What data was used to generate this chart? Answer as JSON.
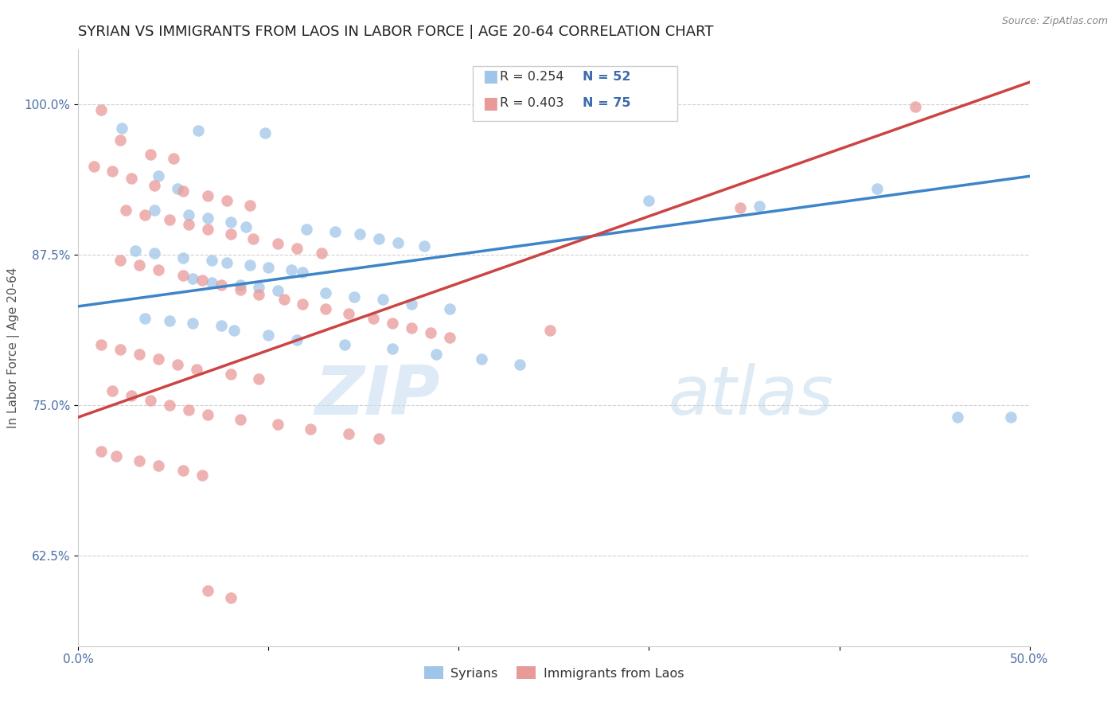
{
  "title": "SYRIAN VS IMMIGRANTS FROM LAOS IN LABOR FORCE | AGE 20-64 CORRELATION CHART",
  "source": "Source: ZipAtlas.com",
  "ylabel": "In Labor Force | Age 20-64",
  "xlim": [
    0.0,
    0.5
  ],
  "ylim": [
    0.55,
    1.045
  ],
  "xticks": [
    0.0,
    0.1,
    0.2,
    0.3,
    0.4,
    0.5
  ],
  "xticklabels": [
    "0.0%",
    "",
    "",
    "",
    "",
    "50.0%"
  ],
  "yticks": [
    0.625,
    0.75,
    0.875,
    1.0
  ],
  "yticklabels": [
    "62.5%",
    "75.0%",
    "87.5%",
    "100.0%"
  ],
  "blue_color": "#9fc5e8",
  "pink_color": "#ea9999",
  "blue_line_color": "#3d85c8",
  "pink_line_color": "#cc4444",
  "legend_label_blue": "Syrians",
  "legend_label_pink": "Immigrants from Laos",
  "watermark_ZIP": "ZIP",
  "watermark_atlas": "atlas",
  "title_fontsize": 13,
  "axis_label_fontsize": 11,
  "tick_fontsize": 11,
  "blue_scatter": [
    [
      0.023,
      0.98
    ],
    [
      0.063,
      0.978
    ],
    [
      0.098,
      0.976
    ],
    [
      0.042,
      0.94
    ],
    [
      0.052,
      0.93
    ],
    [
      0.04,
      0.912
    ],
    [
      0.058,
      0.908
    ],
    [
      0.068,
      0.905
    ],
    [
      0.08,
      0.902
    ],
    [
      0.088,
      0.898
    ],
    [
      0.12,
      0.896
    ],
    [
      0.135,
      0.894
    ],
    [
      0.148,
      0.892
    ],
    [
      0.158,
      0.888
    ],
    [
      0.168,
      0.885
    ],
    [
      0.182,
      0.882
    ],
    [
      0.03,
      0.878
    ],
    [
      0.04,
      0.876
    ],
    [
      0.055,
      0.872
    ],
    [
      0.07,
      0.87
    ],
    [
      0.078,
      0.868
    ],
    [
      0.09,
      0.866
    ],
    [
      0.1,
      0.864
    ],
    [
      0.112,
      0.862
    ],
    [
      0.118,
      0.86
    ],
    [
      0.06,
      0.855
    ],
    [
      0.07,
      0.852
    ],
    [
      0.085,
      0.85
    ],
    [
      0.095,
      0.848
    ],
    [
      0.105,
      0.845
    ],
    [
      0.13,
      0.843
    ],
    [
      0.145,
      0.84
    ],
    [
      0.16,
      0.838
    ],
    [
      0.175,
      0.834
    ],
    [
      0.195,
      0.83
    ],
    [
      0.035,
      0.822
    ],
    [
      0.048,
      0.82
    ],
    [
      0.06,
      0.818
    ],
    [
      0.075,
      0.816
    ],
    [
      0.082,
      0.812
    ],
    [
      0.1,
      0.808
    ],
    [
      0.115,
      0.804
    ],
    [
      0.14,
      0.8
    ],
    [
      0.165,
      0.797
    ],
    [
      0.188,
      0.792
    ],
    [
      0.212,
      0.788
    ],
    [
      0.232,
      0.784
    ],
    [
      0.3,
      0.92
    ],
    [
      0.358,
      0.915
    ],
    [
      0.42,
      0.93
    ],
    [
      0.462,
      0.74
    ],
    [
      0.49,
      0.74
    ]
  ],
  "pink_scatter": [
    [
      0.012,
      0.995
    ],
    [
      0.022,
      0.97
    ],
    [
      0.038,
      0.958
    ],
    [
      0.05,
      0.955
    ],
    [
      0.008,
      0.948
    ],
    [
      0.018,
      0.944
    ],
    [
      0.028,
      0.938
    ],
    [
      0.04,
      0.932
    ],
    [
      0.055,
      0.928
    ],
    [
      0.068,
      0.924
    ],
    [
      0.078,
      0.92
    ],
    [
      0.09,
      0.916
    ],
    [
      0.025,
      0.912
    ],
    [
      0.035,
      0.908
    ],
    [
      0.048,
      0.904
    ],
    [
      0.058,
      0.9
    ],
    [
      0.068,
      0.896
    ],
    [
      0.08,
      0.892
    ],
    [
      0.092,
      0.888
    ],
    [
      0.105,
      0.884
    ],
    [
      0.115,
      0.88
    ],
    [
      0.128,
      0.876
    ],
    [
      0.022,
      0.87
    ],
    [
      0.032,
      0.866
    ],
    [
      0.042,
      0.862
    ],
    [
      0.055,
      0.858
    ],
    [
      0.065,
      0.854
    ],
    [
      0.075,
      0.85
    ],
    [
      0.085,
      0.846
    ],
    [
      0.095,
      0.842
    ],
    [
      0.108,
      0.838
    ],
    [
      0.118,
      0.834
    ],
    [
      0.13,
      0.83
    ],
    [
      0.142,
      0.826
    ],
    [
      0.155,
      0.822
    ],
    [
      0.165,
      0.818
    ],
    [
      0.175,
      0.814
    ],
    [
      0.185,
      0.81
    ],
    [
      0.195,
      0.806
    ],
    [
      0.012,
      0.8
    ],
    [
      0.022,
      0.796
    ],
    [
      0.032,
      0.792
    ],
    [
      0.042,
      0.788
    ],
    [
      0.052,
      0.784
    ],
    [
      0.062,
      0.78
    ],
    [
      0.08,
      0.776
    ],
    [
      0.095,
      0.772
    ],
    [
      0.018,
      0.762
    ],
    [
      0.028,
      0.758
    ],
    [
      0.038,
      0.754
    ],
    [
      0.048,
      0.75
    ],
    [
      0.058,
      0.746
    ],
    [
      0.068,
      0.742
    ],
    [
      0.085,
      0.738
    ],
    [
      0.105,
      0.734
    ],
    [
      0.122,
      0.73
    ],
    [
      0.142,
      0.726
    ],
    [
      0.158,
      0.722
    ],
    [
      0.012,
      0.712
    ],
    [
      0.02,
      0.708
    ],
    [
      0.032,
      0.704
    ],
    [
      0.042,
      0.7
    ],
    [
      0.055,
      0.696
    ],
    [
      0.065,
      0.692
    ],
    [
      0.248,
      0.812
    ],
    [
      0.348,
      0.914
    ],
    [
      0.44,
      0.998
    ],
    [
      0.068,
      0.596
    ],
    [
      0.08,
      0.59
    ]
  ],
  "blue_trendline": [
    [
      0.0,
      0.832
    ],
    [
      0.5,
      0.94
    ]
  ],
  "pink_trendline": [
    [
      0.0,
      0.74
    ],
    [
      0.5,
      1.018
    ]
  ]
}
